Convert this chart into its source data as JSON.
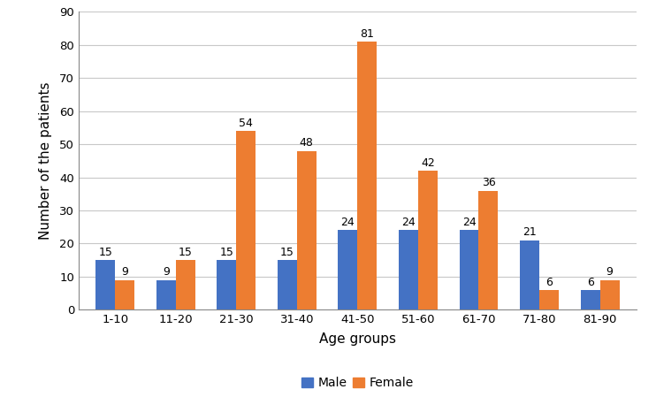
{
  "categories": [
    "1-10",
    "11-20",
    "21-30",
    "31-40",
    "41-50",
    "51-60",
    "61-70",
    "71-80",
    "81-90"
  ],
  "male_values": [
    15,
    9,
    15,
    15,
    24,
    24,
    24,
    21,
    6
  ],
  "female_values": [
    9,
    15,
    54,
    48,
    81,
    42,
    36,
    6,
    9
  ],
  "male_color": "#4472C4",
  "female_color": "#ED7D31",
  "xlabel": "Age groups",
  "ylabel": "Number of the patients",
  "ylim": [
    0,
    90
  ],
  "yticks": [
    0,
    10,
    20,
    30,
    40,
    50,
    60,
    70,
    80,
    90
  ],
  "legend_male": "Male",
  "legend_female": "Female",
  "bar_width": 0.32,
  "label_fontsize": 9,
  "axis_label_fontsize": 11,
  "tick_fontsize": 9.5,
  "legend_fontsize": 10,
  "grid_color": "#c8c8c8",
  "spine_color": "#888888",
  "background_color": "#ffffff"
}
